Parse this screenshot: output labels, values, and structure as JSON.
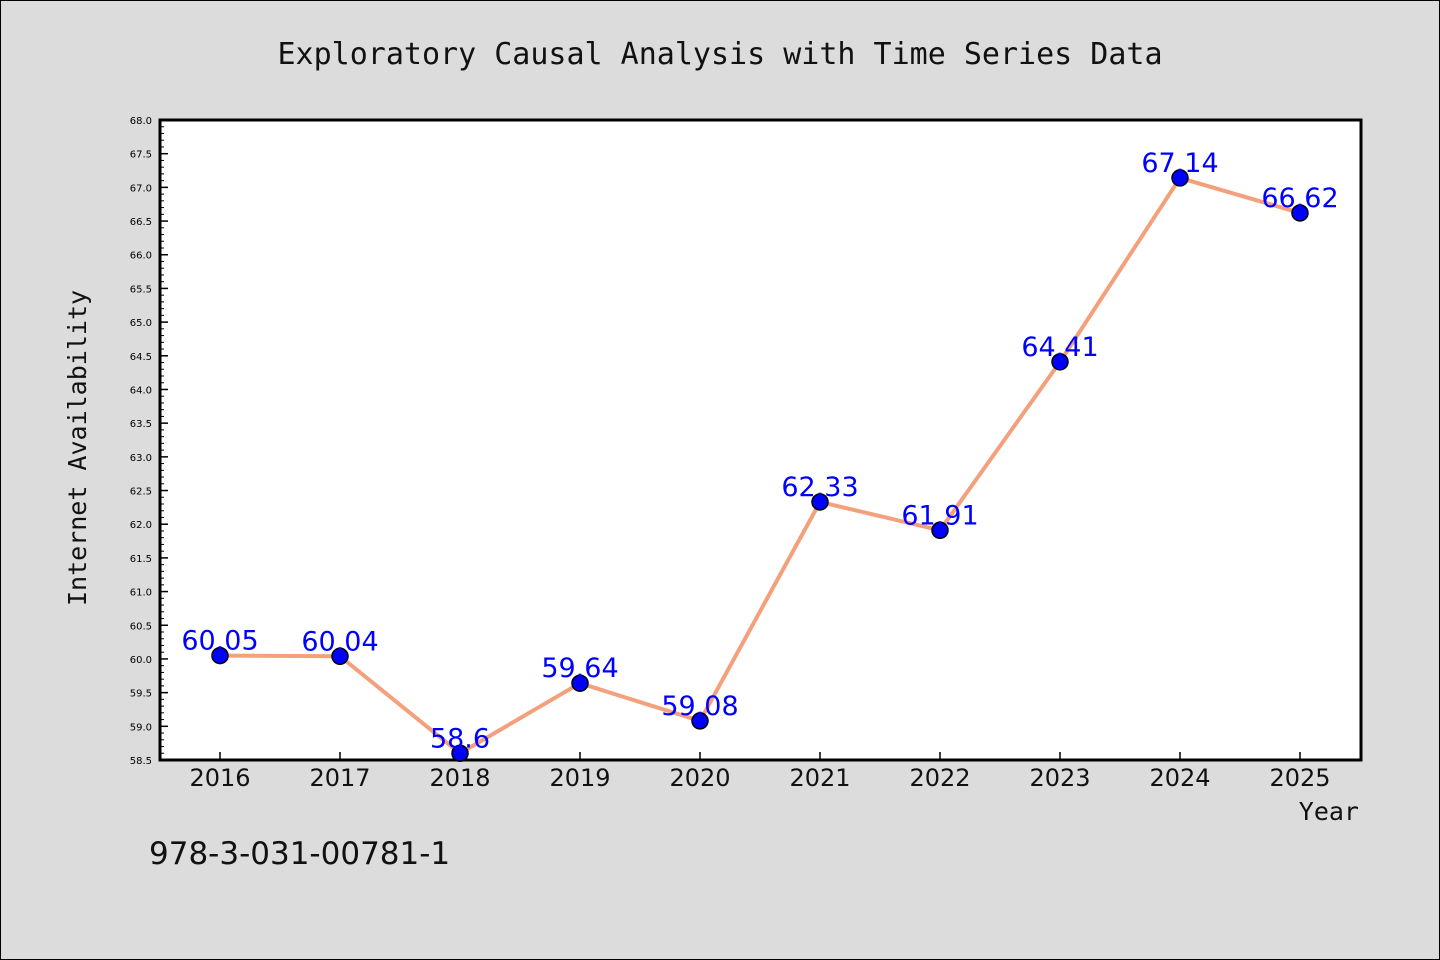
{
  "page": {
    "background": "#dcdcdc",
    "isbn": "978-3-031-00781-1"
  },
  "chart_data": {
    "type": "line",
    "title": "Exploratory Causal Analysis with Time Series Data",
    "xlabel": "Year",
    "ylabel": "Internet Availability",
    "x": [
      "2016",
      "2017",
      "2018",
      "2019",
      "2020",
      "2021",
      "2022",
      "2023",
      "2024",
      "2025"
    ],
    "series": [
      {
        "values": [
          60.05,
          60.04,
          58.6,
          59.64,
          59.08,
          62.33,
          61.91,
          64.41,
          67.14,
          66.62
        ],
        "labels": [
          "60.05",
          "60.04",
          "58.6",
          "59.64",
          "59.08",
          "62.33",
          "61.91",
          "64.41",
          "67.14",
          "66.62"
        ],
        "line_color": "#f4a07c",
        "marker_color": "#0000ff"
      }
    ],
    "ylim": [
      58.5,
      68.0
    ],
    "yticks": [
      "58.5",
      "59.0",
      "59.5",
      "60.0",
      "60.5",
      "61.0",
      "61.5",
      "62.0",
      "62.5",
      "63.0",
      "63.5",
      "64.0",
      "64.5",
      "65.0",
      "65.5",
      "66.0",
      "66.5",
      "67.0",
      "67.5",
      "68.0"
    ],
    "grid": false,
    "legend": "none",
    "label_color": "#0000ff"
  }
}
